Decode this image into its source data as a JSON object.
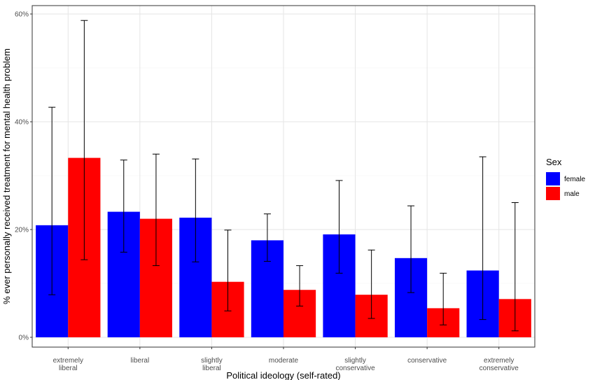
{
  "chart_data": {
    "type": "bar",
    "categories": [
      "extremely\nliberal",
      "liberal",
      "slightly\nliberal",
      "moderate",
      "slightly\nconservative",
      "conservative",
      "extremely\nconservative"
    ],
    "series": [
      {
        "name": "female",
        "color": "#0000ff",
        "values": [
          20.8,
          23.3,
          22.2,
          18.0,
          19.1,
          14.7,
          12.4
        ],
        "error_low": [
          7.9,
          15.8,
          14.0,
          14.1,
          11.9,
          8.3,
          3.3
        ],
        "error_high": [
          42.7,
          32.9,
          33.1,
          22.9,
          29.1,
          24.4,
          33.5
        ]
      },
      {
        "name": "male",
        "color": "#ff0000",
        "values": [
          33.3,
          22.0,
          10.3,
          8.8,
          7.9,
          5.4,
          7.1
        ],
        "error_low": [
          14.4,
          13.3,
          4.9,
          5.8,
          3.5,
          2.3,
          1.2
        ],
        "error_high": [
          58.8,
          34.0,
          19.9,
          13.3,
          16.2,
          11.9,
          25.0
        ]
      }
    ],
    "xlabel": "Political ideology (self-rated)",
    "ylabel": "% ever personally received treatment for mental health problem",
    "ylim": [
      0,
      60
    ],
    "yticks": [
      0,
      20,
      40,
      60
    ],
    "ytick_labels": [
      "0%",
      "20%",
      "40%",
      "60%"
    ],
    "grid": true,
    "legend": {
      "title": "Sex",
      "position": "right"
    }
  }
}
